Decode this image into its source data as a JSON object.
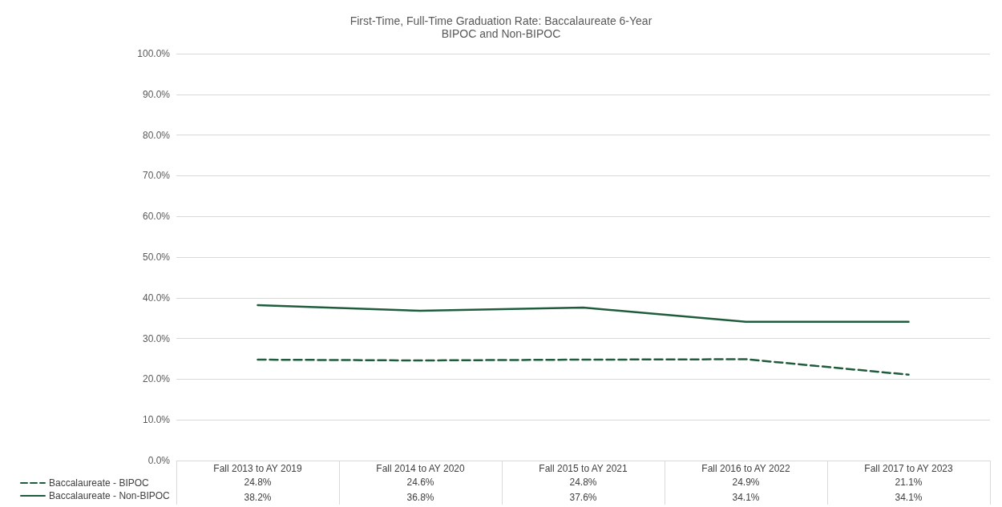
{
  "chart_data": {
    "type": "line",
    "title": "First-Time, Full-Time Graduation Rate: Baccalaureate 6-Year",
    "subtitle": "BIPOC and Non-BIPOC",
    "categories": [
      "Fall 2013 to AY 2019",
      "Fall 2014 to AY 2020",
      "Fall 2015 to AY 2021",
      "Fall 2016 to AY 2022",
      "Fall 2017 to AY 2023"
    ],
    "series": [
      {
        "name": "Baccalaureate - BIPOC",
        "color": "#1f5c3c",
        "line_style": "dashed",
        "values": [
          24.8,
          24.6,
          24.8,
          24.9,
          21.1
        ],
        "value_labels": [
          "24.8%",
          "24.6%",
          "24.8%",
          "24.9%",
          "21.1%"
        ]
      },
      {
        "name": "Baccalaureate - Non-BIPOC",
        "color": "#1f5c3c",
        "line_style": "solid",
        "values": [
          38.2,
          36.8,
          37.6,
          34.1,
          34.1
        ],
        "value_labels": [
          "38.2%",
          "36.8%",
          "37.6%",
          "34.1%",
          "34.1%"
        ]
      }
    ],
    "ylim": [
      0,
      100
    ],
    "yticks": [
      {
        "value": 0,
        "label": "0.0%"
      },
      {
        "value": 10,
        "label": "10.0%"
      },
      {
        "value": 20,
        "label": "20.0%"
      },
      {
        "value": 30,
        "label": "30.0%"
      },
      {
        "value": 40,
        "label": "40.0%"
      },
      {
        "value": 50,
        "label": "50.0%"
      },
      {
        "value": 60,
        "label": "60.0%"
      },
      {
        "value": 70,
        "label": "70.0%"
      },
      {
        "value": 80,
        "label": "80.0%"
      },
      {
        "value": 90,
        "label": "90.0%"
      },
      {
        "value": 100,
        "label": "100.0%"
      }
    ],
    "grid": "y",
    "legend": "bottom left",
    "marker": "none"
  }
}
